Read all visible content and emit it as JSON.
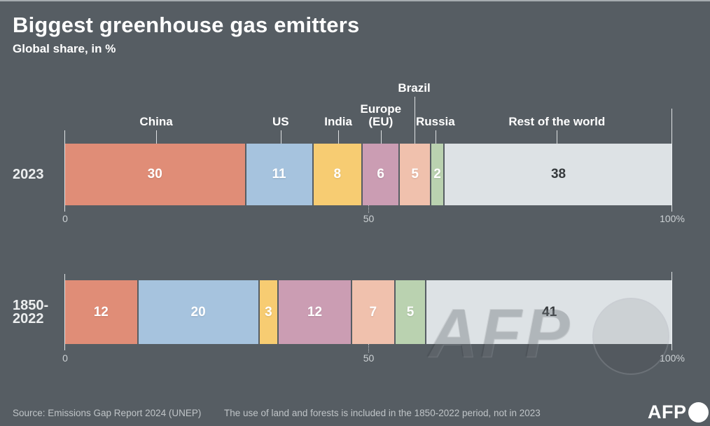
{
  "header": {
    "title": "Biggest greenhouse gas emitters",
    "subtitle": "Global share, in %"
  },
  "watermark": {
    "text": "AFP"
  },
  "footer": {
    "source": "Source: Emissions Gap Report 2024 (UNEP)",
    "note": "The use of land and forests is included in the 1850-2022 period, not in 2023",
    "logo": "AFP"
  },
  "colors": {
    "background": "#565d63",
    "top_border": "#a6acb0",
    "axis_line": "#f0f3f4",
    "tick_text": "#ccd1d4",
    "footer_text": "#bfc4c7",
    "value_light": "#ffffff",
    "value_dark": "#35393c"
  },
  "chart_data": {
    "type": "bar",
    "stacked": true,
    "orientation": "horizontal",
    "title": "Biggest greenhouse gas emitters",
    "subtitle": "Global share, in %",
    "unit": "%",
    "xlim": [
      0,
      100
    ],
    "x_ticks": [
      {
        "label": "0",
        "pos": 0
      },
      {
        "label": "50",
        "pos": 50
      },
      {
        "label": "100%",
        "pos": 100
      }
    ],
    "categories": [
      "2023",
      "1850-2022"
    ],
    "rows": [
      {
        "label_lines": [
          "2023"
        ]
      },
      {
        "label_lines": [
          "1850-",
          "2022"
        ]
      }
    ],
    "series": [
      {
        "name": "China",
        "label_lines": [
          "China"
        ],
        "raised": false,
        "color": "#e08d77",
        "text_color": "#ffffff",
        "values": [
          30,
          12
        ]
      },
      {
        "name": "US",
        "label_lines": [
          "US"
        ],
        "raised": false,
        "color": "#a6c3de",
        "text_color": "#ffffff",
        "values": [
          11,
          20
        ]
      },
      {
        "name": "India",
        "label_lines": [
          "India"
        ],
        "raised": false,
        "color": "#f7cc72",
        "text_color": "#ffffff",
        "values": [
          8,
          3
        ]
      },
      {
        "name": "Europe (EU)",
        "label_lines": [
          "Europe",
          "(EU)"
        ],
        "raised": false,
        "color": "#cb9db3",
        "text_color": "#ffffff",
        "values": [
          6,
          12
        ]
      },
      {
        "name": "Brazil",
        "label_lines": [
          "Brazil"
        ],
        "raised": true,
        "color": "#f0c1ad",
        "text_color": "#ffffff",
        "values": [
          5,
          7
        ]
      },
      {
        "name": "Russia",
        "label_lines": [
          "Russia"
        ],
        "raised": false,
        "color": "#bad2b0",
        "text_color": "#ffffff",
        "values": [
          2,
          5
        ]
      },
      {
        "name": "Rest of the world",
        "label_lines": [
          "Rest of the world"
        ],
        "raised": false,
        "color": "#dde2e5",
        "text_color": "#35393c",
        "values": [
          38,
          41
        ]
      }
    ],
    "legend": "labels above top bar with connector lines",
    "grid": false
  }
}
